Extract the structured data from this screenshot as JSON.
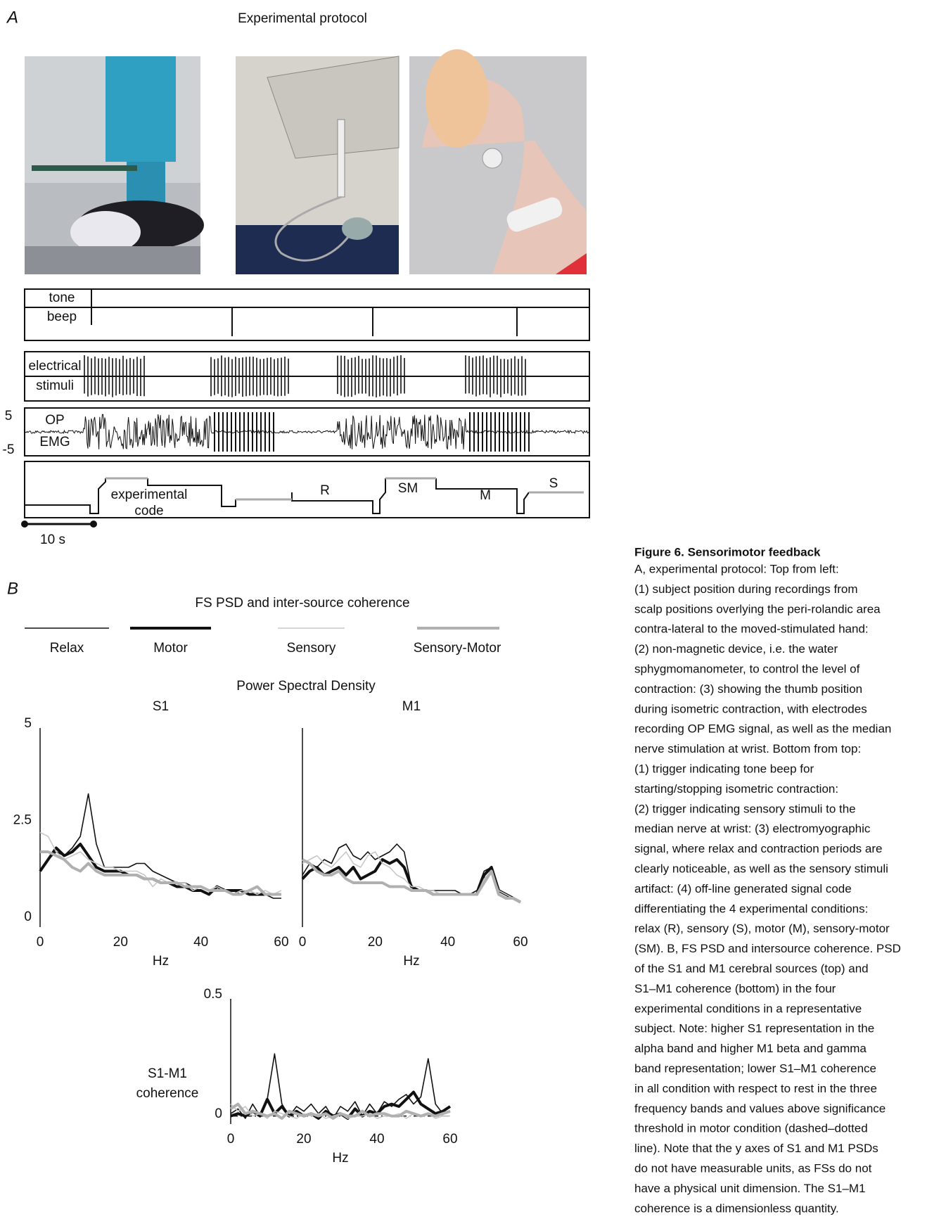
{
  "panel_a": {
    "label": "A",
    "title": "Experimental protocol",
    "traces": {
      "tone": "tone",
      "beep": "beep",
      "electrical": "electrical",
      "stimuli": "stimuli",
      "op": "OP",
      "emg": "EMG",
      "scale_top": "5",
      "scale_bottom": "-5",
      "code_1": "experimental",
      "code_2": "code",
      "r": "R",
      "sm": "SM",
      "m": "M",
      "s": "S"
    },
    "time_scale": "10 s"
  },
  "panel_b": {
    "label": "B",
    "title": "FS PSD and inter-source coherence",
    "subtitle": "Power Spectral Density"
  },
  "chart_data": [
    {
      "type": "line",
      "title": "S1",
      "xlabel": "Hz",
      "xlim": [
        0,
        60
      ],
      "ylim": [
        0,
        5
      ],
      "xticks": [
        0,
        20,
        40,
        60
      ],
      "yticks": [
        0,
        2.5,
        5
      ],
      "x": [
        0,
        2,
        4,
        6,
        8,
        10,
        12,
        14,
        16,
        18,
        20,
        22,
        24,
        26,
        28,
        30,
        32,
        34,
        36,
        38,
        40,
        42,
        44,
        46,
        48,
        50,
        52,
        54,
        56,
        58,
        60
      ],
      "series": [
        {
          "name": "Relax",
          "color": "#111111",
          "width": 1.6,
          "values": [
            1.3,
            1.6,
            1.8,
            1.7,
            1.9,
            2.2,
            3.3,
            2.0,
            1.4,
            1.4,
            1.4,
            1.4,
            1.5,
            1.5,
            1.3,
            1.2,
            1.1,
            1.0,
            1.0,
            0.9,
            0.9,
            0.8,
            0.9,
            0.8,
            0.8,
            0.7,
            0.8,
            0.7,
            0.7,
            0.6,
            0.6
          ]
        },
        {
          "name": "Motor",
          "color": "#111111",
          "width": 4,
          "values": [
            1.3,
            1.6,
            1.9,
            1.7,
            1.8,
            2.0,
            1.7,
            1.4,
            1.3,
            1.3,
            1.3,
            1.2,
            1.2,
            1.1,
            1.1,
            1.0,
            1.0,
            0.9,
            0.9,
            0.8,
            0.8,
            0.7,
            0.9,
            0.8,
            0.8,
            0.8,
            0.7,
            0.7,
            0.7,
            0.7,
            0.7
          ]
        },
        {
          "name": "Sensory",
          "color": "#c8c8c8",
          "width": 1.6,
          "values": [
            2.3,
            2.2,
            1.8,
            1.6,
            1.7,
            1.8,
            1.6,
            1.5,
            1.4,
            1.4,
            1.3,
            1.3,
            1.3,
            1.2,
            0.9,
            1.1,
            1.0,
            1.0,
            1.0,
            0.8,
            0.9,
            0.8,
            0.9,
            0.8,
            0.7,
            0.8,
            0.8,
            0.7,
            0.8,
            0.7,
            0.8
          ]
        },
        {
          "name": "Sensory-Motor",
          "color": "#b0b0b0",
          "width": 4,
          "values": [
            1.8,
            1.8,
            1.7,
            1.6,
            1.4,
            1.3,
            1.5,
            1.3,
            1.2,
            1.2,
            1.2,
            1.2,
            1.2,
            1.1,
            1.1,
            1.0,
            1.0,
            1.0,
            0.9,
            0.9,
            0.9,
            0.8,
            0.8,
            0.8,
            0.7,
            0.7,
            0.8,
            0.9,
            0.7,
            0.7,
            0.7
          ]
        }
      ]
    },
    {
      "type": "line",
      "title": "M1",
      "xlabel": "Hz",
      "xlim": [
        0,
        60
      ],
      "ylim": [
        0,
        5
      ],
      "xticks": [
        0,
        20,
        40,
        60
      ],
      "x": [
        0,
        2,
        4,
        6,
        8,
        10,
        12,
        14,
        16,
        18,
        20,
        22,
        24,
        26,
        28,
        30,
        32,
        34,
        36,
        38,
        40,
        42,
        44,
        46,
        48,
        50,
        52,
        54,
        56,
        58,
        60
      ],
      "series": [
        {
          "color": "#111111",
          "width": 1.6,
          "values": [
            1.2,
            1.5,
            1.4,
            1.6,
            1.5,
            1.9,
            2.0,
            1.7,
            1.6,
            1.8,
            1.6,
            1.7,
            1.8,
            2.0,
            1.8,
            0.9,
            0.8,
            0.8,
            0.8,
            0.8,
            0.8,
            0.8,
            0.7,
            0.7,
            0.8,
            1.3,
            1.4,
            0.8,
            0.7,
            0.6,
            0.5
          ]
        },
        {
          "color": "#111111",
          "width": 4,
          "values": [
            1.1,
            1.3,
            1.4,
            1.2,
            1.3,
            1.4,
            1.2,
            1.4,
            1.1,
            1.2,
            1.3,
            1.6,
            1.5,
            1.6,
            1.4,
            0.9,
            0.8,
            0.8,
            0.7,
            0.7,
            0.7,
            0.7,
            0.7,
            0.7,
            0.7,
            1.2,
            1.4,
            0.8,
            0.7,
            0.6,
            0.5
          ]
        },
        {
          "color": "#c8c8c8",
          "width": 1.6,
          "values": [
            1.5,
            1.6,
            1.7,
            1.5,
            1.4,
            1.6,
            1.8,
            1.5,
            1.4,
            1.7,
            1.8,
            1.5,
            1.4,
            1.2,
            1.1,
            0.9,
            0.9,
            0.8,
            0.8,
            0.7,
            0.7,
            0.7,
            0.7,
            0.7,
            0.7,
            1.1,
            1.3,
            0.8,
            0.7,
            0.6,
            0.5
          ]
        },
        {
          "color": "#b0b0b0",
          "width": 4,
          "values": [
            1.6,
            1.5,
            1.3,
            1.2,
            1.2,
            1.3,
            1.1,
            1.0,
            1.0,
            1.0,
            1.0,
            1.0,
            0.9,
            0.9,
            0.9,
            0.8,
            0.8,
            0.8,
            0.7,
            0.7,
            0.7,
            0.7,
            0.7,
            0.7,
            0.7,
            1.0,
            1.3,
            0.7,
            0.6,
            0.6,
            0.5
          ]
        }
      ]
    },
    {
      "type": "line",
      "ylabel": [
        "S1-M1",
        "coherence"
      ],
      "xlabel": "Hz",
      "xlim": [
        0,
        60
      ],
      "ylim": [
        0,
        0.5
      ],
      "xticks": [
        0,
        20,
        40,
        60
      ],
      "yticks": [
        0,
        0.5
      ],
      "threshold": 0.01,
      "x": [
        0,
        2,
        4,
        6,
        8,
        10,
        12,
        14,
        16,
        18,
        20,
        22,
        24,
        26,
        28,
        30,
        32,
        34,
        36,
        38,
        40,
        42,
        44,
        46,
        48,
        50,
        52,
        54,
        56,
        58,
        60
      ],
      "series": [
        {
          "color": "#111111",
          "width": 1.6,
          "values": [
            0.02,
            0.04,
            0.0,
            0.06,
            0.01,
            0.08,
            0.27,
            0.06,
            0.01,
            0.05,
            0.03,
            0.06,
            0.02,
            0.05,
            0.0,
            0.05,
            0.03,
            0.07,
            0.01,
            0.06,
            0.02,
            0.07,
            0.05,
            0.08,
            0.1,
            0.06,
            0.09,
            0.25,
            0.06,
            0.02,
            0.03
          ]
        },
        {
          "color": "#111111",
          "width": 4,
          "values": [
            0.01,
            0.02,
            0.01,
            0.03,
            0.01,
            0.08,
            0.02,
            0.05,
            0.01,
            0.03,
            0.01,
            0.02,
            0.0,
            0.03,
            0.01,
            0.02,
            0.0,
            0.04,
            0.01,
            0.03,
            0.02,
            0.05,
            0.06,
            0.05,
            0.08,
            0.11,
            0.06,
            0.04,
            0.02,
            0.03,
            0.05
          ]
        },
        {
          "color": "#c8c8c8",
          "width": 1.6,
          "values": [
            0.06,
            0.03,
            0.05,
            0.01,
            0.02,
            0.0,
            0.03,
            0.02,
            0.01,
            0.0,
            0.02,
            0.01,
            0.02,
            0.0,
            0.01,
            0.02,
            0.0,
            0.01,
            0.01,
            0.02,
            0.0,
            0.01,
            0.01,
            0.02,
            0.0,
            0.02,
            0.01,
            0.02,
            0.0,
            0.01,
            0.01
          ]
        },
        {
          "color": "#b0b0b0",
          "width": 4,
          "values": [
            0.04,
            0.06,
            0.02,
            0.03,
            0.02,
            0.01,
            0.02,
            0.0,
            0.03,
            0.02,
            0.01,
            0.02,
            0.01,
            0.02,
            0.0,
            0.02,
            0.01,
            0.01,
            0.03,
            0.01,
            0.02,
            0.02,
            0.01,
            0.01,
            0.03,
            0.02,
            0.01,
            0.02,
            0.01,
            0.02,
            0.03
          ]
        }
      ]
    }
  ],
  "caption": {
    "title": "Figure 6.  Sensorimotor feedback",
    "lines": [
      "A, experimental protocol: Top from left:",
      "(1) subject position during recordings from",
      "scalp positions overlying the peri-rolandic area",
      "contra-lateral to the moved-stimulated hand:",
      "(2) non-magnetic device, i.e. the water",
      "sphygmomanometer, to control the level of",
      "contraction: (3) showing the thumb position",
      "during isometric contraction, with electrodes",
      "recording OP EMG signal, as well as the median",
      "nerve stimulation at wrist. Bottom from top:",
      "(1) trigger indicating tone beep for",
      "starting/stopping isometric contraction:",
      "(2) trigger indicating sensory stimuli to the",
      "median nerve at wrist: (3) electromyographic",
      "signal, where relax and contraction periods are",
      "clearly noticeable, as well as the sensory stimuli",
      "artifact: (4) off-line generated signal code",
      "differentiating the 4 experimental conditions:",
      "relax (R), sensory (S), motor (M), sensory-motor",
      "(SM). B, FS PSD and intersource coherence. PSD",
      "of the S1 and M1 cerebral sources (top) and",
      "S1–M1 coherence (bottom) in the four",
      "experimental conditions in a representative",
      "subject. Note: higher S1 representation in the",
      "alpha band and higher M1 beta and gamma",
      "band representation; lower S1–M1 coherence",
      "in all condition with respect to rest in the three",
      "frequency bands and values above significance",
      "threshold in motor condition (dashed–dotted",
      "line). Note that the y axes of S1 and M1 PSDs",
      "do not have measurable units, as FSs do not",
      "have a physical unit dimension. The S1–M1",
      "coherence is a dimensionless quantity."
    ]
  }
}
